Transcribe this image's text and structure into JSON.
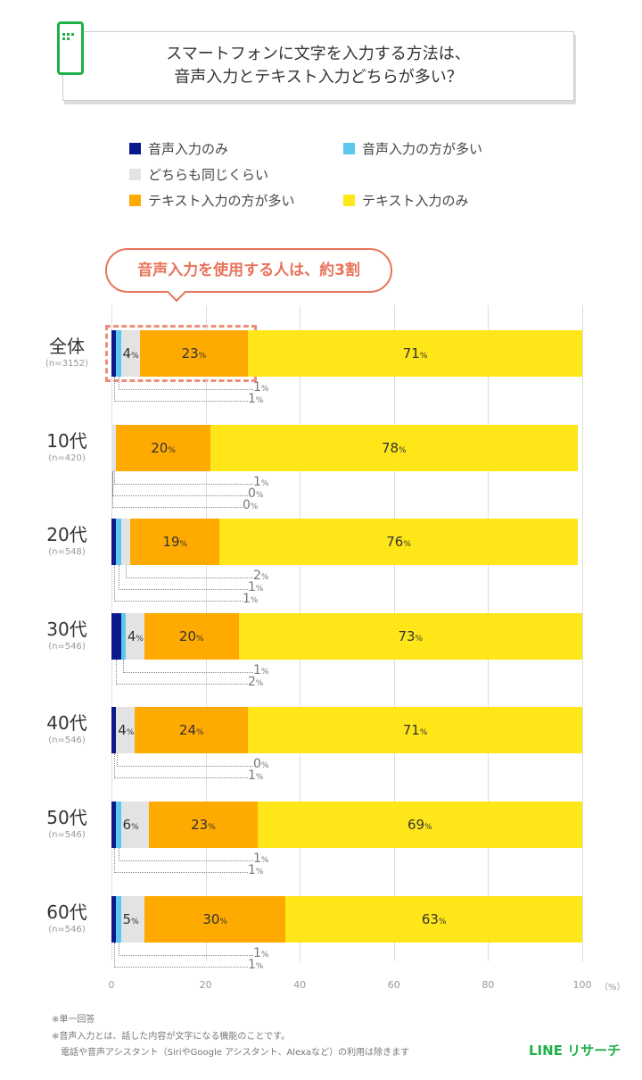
{
  "title": "スマートフォンに文字を入力する方法は、\n音声入力とテキスト入力どちらが多い？",
  "callout": "音声入力を使用する人は、約3割",
  "notes": [
    "※単一回答",
    "※音声入力とは、話した内容が文字になる機能のことです。",
    "　電話や音声アシスタント（SiriやGoogle アシスタント、Alexaなど）の利用は除きます"
  ],
  "brand": "LINE リサーチ",
  "chart_data": {
    "type": "bar",
    "orientation": "horizontal-stacked",
    "categories": [
      "全体",
      "10代",
      "20代",
      "30代",
      "40代",
      "50代",
      "60代"
    ],
    "sample_sizes": [
      "(n=3152)",
      "(n=420)",
      "(n=548)",
      "(n=546)",
      "(n=546)",
      "(n=546)",
      "(n=546)"
    ],
    "series": [
      {
        "name": "音声入力のみ",
        "color": "#0a1a8c",
        "values": [
          1,
          0,
          1,
          2,
          1,
          1,
          1
        ]
      },
      {
        "name": "音声入力の方が多い",
        "color": "#5bc8f0",
        "values": [
          1,
          0,
          1,
          1,
          0,
          1,
          1
        ]
      },
      {
        "name": "どちらも同じくらい",
        "color": "#e3e3e3",
        "values": [
          4,
          1,
          2,
          4,
          4,
          6,
          5
        ]
      },
      {
        "name": "テキスト入力の方が多い",
        "color": "#ffaa00",
        "values": [
          23,
          20,
          19,
          20,
          24,
          23,
          30
        ]
      },
      {
        "name": "テキスト入力のみ",
        "color": "#ffe619",
        "values": [
          71,
          78,
          76,
          73,
          71,
          69,
          63
        ]
      }
    ],
    "xlim": [
      0,
      100
    ],
    "xticks": [
      "0",
      "20",
      "40",
      "60",
      "80",
      "100"
    ],
    "xunit": "（%）",
    "value_suffix": "%",
    "grid": true,
    "legend": "top"
  }
}
